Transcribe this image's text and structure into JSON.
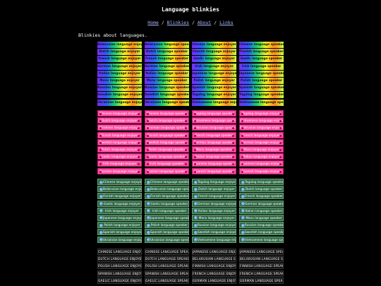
{
  "header": {
    "title": "Language blinkies"
  },
  "nav": {
    "separator": "/",
    "links": [
      "Home",
      "Blinkies",
      "About",
      "Links"
    ]
  },
  "intro": "Blinkies about languages.",
  "sections": [
    {
      "blinkies": [
        "Belarusian language enjoyer",
        "Belarusian language speaker",
        "Chinese language enjoyer",
        "Chinese language speaker",
        "Dutch language enjoyer",
        "Dutch language speaker",
        "Finnish language enjoyer",
        "Finnish language speaker",
        "French language enjoyer",
        "French language speaker",
        "Gaelic language enjoyer",
        "Gaelic language speaker",
        "German language enjoyer",
        "German language speaker",
        "Irish language enjoyer",
        "Irish language speaker",
        "Italian language enjoyer",
        "Italian language speaker",
        "Japanese language enjoyer",
        "Japanese language speaker",
        "Manx language enjoyer",
        "Manx language speaker",
        "Polish language enjoyer",
        "Polish language speaker",
        "Russian language enjoyer",
        "Russian language speaker",
        "Spanish language enjoyer",
        "Spanish language speaker",
        "Swedish language enjoyer",
        "Swedish language speaker",
        "Tagalog language enjoyer",
        "Tagalog language speaker",
        "Ukrainian language enjoyer",
        "Ukrainian language speaker",
        "Vietnamese language enjoyer",
        "Vietnamese language speaker"
      ]
    },
    {
      "blinkies": [
        "Chinese language enjoyer",
        "Chinese language speaker",
        "Tagalog language speaker",
        "Tagalog language enjoyer",
        "Dutch language enjoyer",
        "Dutch language speaker",
        "Vietnamese language speaker",
        "Vietnamese language enjoyer",
        "Ukrainian language enjoyer",
        "Ukrainian language speaker",
        "Belarusian language speaker",
        "Belarusian language enjoyer",
        "Finnish language enjoyer",
        "Finnish language speaker",
        "French language speaker",
        "French language enjoyer",
        "Swedish language enjoyer",
        "Swedish language speaker",
        "German language speaker",
        "German language enjoyer",
        "Polish language enjoyer",
        "Polish language speaker",
        "Manx language speaker",
        "Manx language enjoyer",
        "Gaelic language enjoyer",
        "Gaelic language speaker",
        "Italian language speaker",
        "Italian language enjoyer",
        "Irish language enjoyer",
        "Irish language speaker",
        "Japanese language speaker",
        "Japanese language enjoyer",
        "Russian language enjoyer",
        "Russian language speaker",
        "Spanish language speaker",
        "Spanish language enjoyer"
      ]
    },
    {
      "blinkies": [
        "Chinese language enjoyer",
        "Chinese language speaker",
        "Tagalog language enjoyer",
        "Tagalog language speaker",
        "Belarusian language enjoyer",
        "Belarusian language speaker",
        "Dutch language enjoyer",
        "Dutch language speaker",
        "Finnish language enjoyer",
        "Finnish language speaker",
        "French language enjoyer",
        "French language speaker",
        "Gaelic language enjoyer",
        "Gaelic language speaker",
        "German language enjoyer",
        "German language speaker",
        "Irish language enjoyer",
        "Irish language speaker",
        "Italian language enjoyer",
        "Italian language speaker",
        "Japanese language enjoyer",
        "Japanese language speaker",
        "Manx language enjoyer",
        "Manx language speaker",
        "Polish language enjoyer",
        "Polish language speaker",
        "Russian language enjoyer",
        "Russian language speaker",
        "Spanish language enjoyer",
        "Spanish language speaker",
        "Swedish language enjoyer",
        "Swedish language speaker",
        "Ukrainian language enjoyer",
        "Ukrainian language speaker",
        "Vietnamese language enjoyer",
        "Vietnamese language speaker"
      ]
    },
    {
      "blinkies": [
        "CHINESE LANGUAGE ENJOYER",
        "CHINESE LANGUAGE SPEAKER",
        "JAPANESE LANGUAGE ENJOYER",
        "JAPANESE LANGUAGE SPEAKER",
        "DUTCH LANGUAGE ENJOYER",
        "DUTCH LANGUAGE SPEAKER",
        "BELARUSIAN LANGUAGE ENJOYER",
        "BELARUSIAN LANGUAGE SPEAKER",
        "POLISH LANGUAGE ENJOYER",
        "POLISH LANGUAGE SPEAKER",
        "FINNISH LANGUAGE ENJOYER",
        "FINNISH LANGUAGE SPEAKER",
        "SPANISH LANGUAGE ENJOYER",
        "SPANISH LANGUAGE SPEAKER",
        "FRENCH LANGUAGE ENJOYER",
        "FRENCH LANGUAGE SPEAKER",
        "GAELIC LANGUAGE ENJOYER",
        "GAELIC LANGUAGE SPEAKER",
        "GERMAN LANGUAGE ENJOYER",
        "GERMAN LANGUAGE SPEAKER"
      ]
    }
  ]
}
